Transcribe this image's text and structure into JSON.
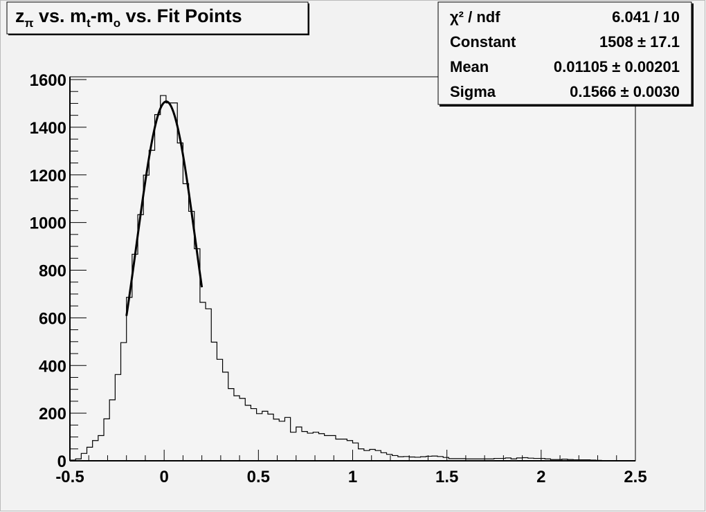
{
  "chart_data": {
    "type": "bar",
    "title": {
      "main": "z",
      "sub_pi": "π",
      "mid": " vs. m",
      "sub_t": "t",
      "dash": "-m",
      "sub_o": "o",
      "end": " vs. Fit Points"
    },
    "xlim": [
      -0.5,
      2.5
    ],
    "ylim": [
      0,
      1600
    ],
    "x_ticks": [
      "-0.5",
      "0",
      "0.5",
      "1",
      "1.5",
      "2",
      "2.5"
    ],
    "y_ticks": [
      "0",
      "200",
      "400",
      "600",
      "800",
      "1000",
      "1200",
      "1400",
      "1600"
    ],
    "bin_start": -0.5,
    "bin_width": 0.03,
    "values": [
      3,
      8,
      31,
      57,
      85,
      106,
      176,
      256,
      362,
      496,
      686,
      867,
      1033,
      1199,
      1303,
      1453,
      1533,
      1502,
      1502,
      1334,
      1163,
      1047,
      890,
      665,
      638,
      498,
      426,
      372,
      303,
      273,
      262,
      233,
      219,
      198,
      208,
      196,
      175,
      166,
      182,
      120,
      142,
      123,
      116,
      120,
      114,
      106,
      106,
      91,
      91,
      85,
      75,
      50,
      43,
      48,
      43,
      34,
      27,
      22,
      17,
      18,
      16,
      15,
      17,
      19,
      20,
      18,
      14,
      9,
      9,
      9,
      8,
      8,
      8,
      8,
      8,
      10,
      10,
      12,
      8,
      12,
      13,
      11,
      10,
      10,
      8,
      5,
      5,
      7,
      5,
      4,
      4,
      4,
      3,
      2,
      0,
      0,
      0,
      0,
      0,
      0
    ],
    "fit": {
      "function": "gaus",
      "constant": 1508,
      "mean": 0.01105,
      "sigma": 0.1566,
      "range": [
        -0.2,
        0.2
      ]
    },
    "grid": false,
    "stats": {
      "rows": [
        {
          "label": "χ² / ndf",
          "value": "6.041 / 10"
        },
        {
          "label": "Constant",
          "value": "1508 ± 17.1"
        },
        {
          "label": "Mean",
          "value": "0.01105 ± 0.00201"
        },
        {
          "label": "Sigma",
          "value": "0.1566 ± 0.0030"
        }
      ]
    }
  }
}
